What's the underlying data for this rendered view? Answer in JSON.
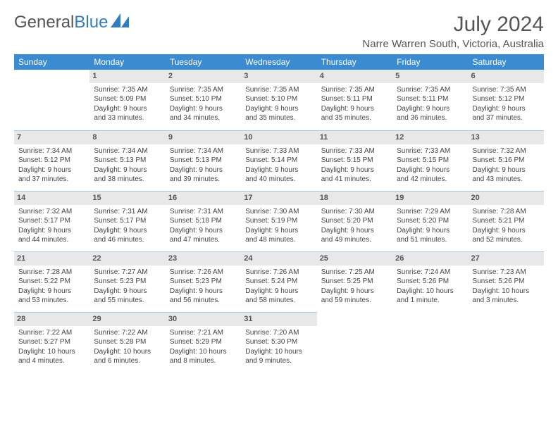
{
  "logo": {
    "text1": "General",
    "text2": "Blue"
  },
  "title": "July 2024",
  "subtitle": "Narre Warren South, Victoria, Australia",
  "colors": {
    "header_bg": "#3a8bd0",
    "header_fg": "#ffffff",
    "daynum_bg": "#e8e8e8",
    "daynum_border": "#a9c8e2",
    "text": "#444",
    "logo_gray": "#555",
    "logo_blue": "#2f7dc0"
  },
  "daynames": [
    "Sunday",
    "Monday",
    "Tuesday",
    "Wednesday",
    "Thursday",
    "Friday",
    "Saturday"
  ],
  "weeks": [
    [
      null,
      {
        "n": "1",
        "l": [
          "Sunrise: 7:35 AM",
          "Sunset: 5:09 PM",
          "Daylight: 9 hours",
          "and 33 minutes."
        ]
      },
      {
        "n": "2",
        "l": [
          "Sunrise: 7:35 AM",
          "Sunset: 5:10 PM",
          "Daylight: 9 hours",
          "and 34 minutes."
        ]
      },
      {
        "n": "3",
        "l": [
          "Sunrise: 7:35 AM",
          "Sunset: 5:10 PM",
          "Daylight: 9 hours",
          "and 35 minutes."
        ]
      },
      {
        "n": "4",
        "l": [
          "Sunrise: 7:35 AM",
          "Sunset: 5:11 PM",
          "Daylight: 9 hours",
          "and 35 minutes."
        ]
      },
      {
        "n": "5",
        "l": [
          "Sunrise: 7:35 AM",
          "Sunset: 5:11 PM",
          "Daylight: 9 hours",
          "and 36 minutes."
        ]
      },
      {
        "n": "6",
        "l": [
          "Sunrise: 7:35 AM",
          "Sunset: 5:12 PM",
          "Daylight: 9 hours",
          "and 37 minutes."
        ]
      }
    ],
    [
      {
        "n": "7",
        "l": [
          "Sunrise: 7:34 AM",
          "Sunset: 5:12 PM",
          "Daylight: 9 hours",
          "and 37 minutes."
        ]
      },
      {
        "n": "8",
        "l": [
          "Sunrise: 7:34 AM",
          "Sunset: 5:13 PM",
          "Daylight: 9 hours",
          "and 38 minutes."
        ]
      },
      {
        "n": "9",
        "l": [
          "Sunrise: 7:34 AM",
          "Sunset: 5:13 PM",
          "Daylight: 9 hours",
          "and 39 minutes."
        ]
      },
      {
        "n": "10",
        "l": [
          "Sunrise: 7:33 AM",
          "Sunset: 5:14 PM",
          "Daylight: 9 hours",
          "and 40 minutes."
        ]
      },
      {
        "n": "11",
        "l": [
          "Sunrise: 7:33 AM",
          "Sunset: 5:15 PM",
          "Daylight: 9 hours",
          "and 41 minutes."
        ]
      },
      {
        "n": "12",
        "l": [
          "Sunrise: 7:33 AM",
          "Sunset: 5:15 PM",
          "Daylight: 9 hours",
          "and 42 minutes."
        ]
      },
      {
        "n": "13",
        "l": [
          "Sunrise: 7:32 AM",
          "Sunset: 5:16 PM",
          "Daylight: 9 hours",
          "and 43 minutes."
        ]
      }
    ],
    [
      {
        "n": "14",
        "l": [
          "Sunrise: 7:32 AM",
          "Sunset: 5:17 PM",
          "Daylight: 9 hours",
          "and 44 minutes."
        ]
      },
      {
        "n": "15",
        "l": [
          "Sunrise: 7:31 AM",
          "Sunset: 5:17 PM",
          "Daylight: 9 hours",
          "and 46 minutes."
        ]
      },
      {
        "n": "16",
        "l": [
          "Sunrise: 7:31 AM",
          "Sunset: 5:18 PM",
          "Daylight: 9 hours",
          "and 47 minutes."
        ]
      },
      {
        "n": "17",
        "l": [
          "Sunrise: 7:30 AM",
          "Sunset: 5:19 PM",
          "Daylight: 9 hours",
          "and 48 minutes."
        ]
      },
      {
        "n": "18",
        "l": [
          "Sunrise: 7:30 AM",
          "Sunset: 5:20 PM",
          "Daylight: 9 hours",
          "and 49 minutes."
        ]
      },
      {
        "n": "19",
        "l": [
          "Sunrise: 7:29 AM",
          "Sunset: 5:20 PM",
          "Daylight: 9 hours",
          "and 51 minutes."
        ]
      },
      {
        "n": "20",
        "l": [
          "Sunrise: 7:28 AM",
          "Sunset: 5:21 PM",
          "Daylight: 9 hours",
          "and 52 minutes."
        ]
      }
    ],
    [
      {
        "n": "21",
        "l": [
          "Sunrise: 7:28 AM",
          "Sunset: 5:22 PM",
          "Daylight: 9 hours",
          "and 53 minutes."
        ]
      },
      {
        "n": "22",
        "l": [
          "Sunrise: 7:27 AM",
          "Sunset: 5:23 PM",
          "Daylight: 9 hours",
          "and 55 minutes."
        ]
      },
      {
        "n": "23",
        "l": [
          "Sunrise: 7:26 AM",
          "Sunset: 5:23 PM",
          "Daylight: 9 hours",
          "and 56 minutes."
        ]
      },
      {
        "n": "24",
        "l": [
          "Sunrise: 7:26 AM",
          "Sunset: 5:24 PM",
          "Daylight: 9 hours",
          "and 58 minutes."
        ]
      },
      {
        "n": "25",
        "l": [
          "Sunrise: 7:25 AM",
          "Sunset: 5:25 PM",
          "Daylight: 9 hours",
          "and 59 minutes."
        ]
      },
      {
        "n": "26",
        "l": [
          "Sunrise: 7:24 AM",
          "Sunset: 5:26 PM",
          "Daylight: 10 hours",
          "and 1 minute."
        ]
      },
      {
        "n": "27",
        "l": [
          "Sunrise: 7:23 AM",
          "Sunset: 5:26 PM",
          "Daylight: 10 hours",
          "and 3 minutes."
        ]
      }
    ],
    [
      {
        "n": "28",
        "l": [
          "Sunrise: 7:22 AM",
          "Sunset: 5:27 PM",
          "Daylight: 10 hours",
          "and 4 minutes."
        ]
      },
      {
        "n": "29",
        "l": [
          "Sunrise: 7:22 AM",
          "Sunset: 5:28 PM",
          "Daylight: 10 hours",
          "and 6 minutes."
        ]
      },
      {
        "n": "30",
        "l": [
          "Sunrise: 7:21 AM",
          "Sunset: 5:29 PM",
          "Daylight: 10 hours",
          "and 8 minutes."
        ]
      },
      {
        "n": "31",
        "l": [
          "Sunrise: 7:20 AM",
          "Sunset: 5:30 PM",
          "Daylight: 10 hours",
          "and 9 minutes."
        ]
      },
      null,
      null,
      null
    ]
  ]
}
